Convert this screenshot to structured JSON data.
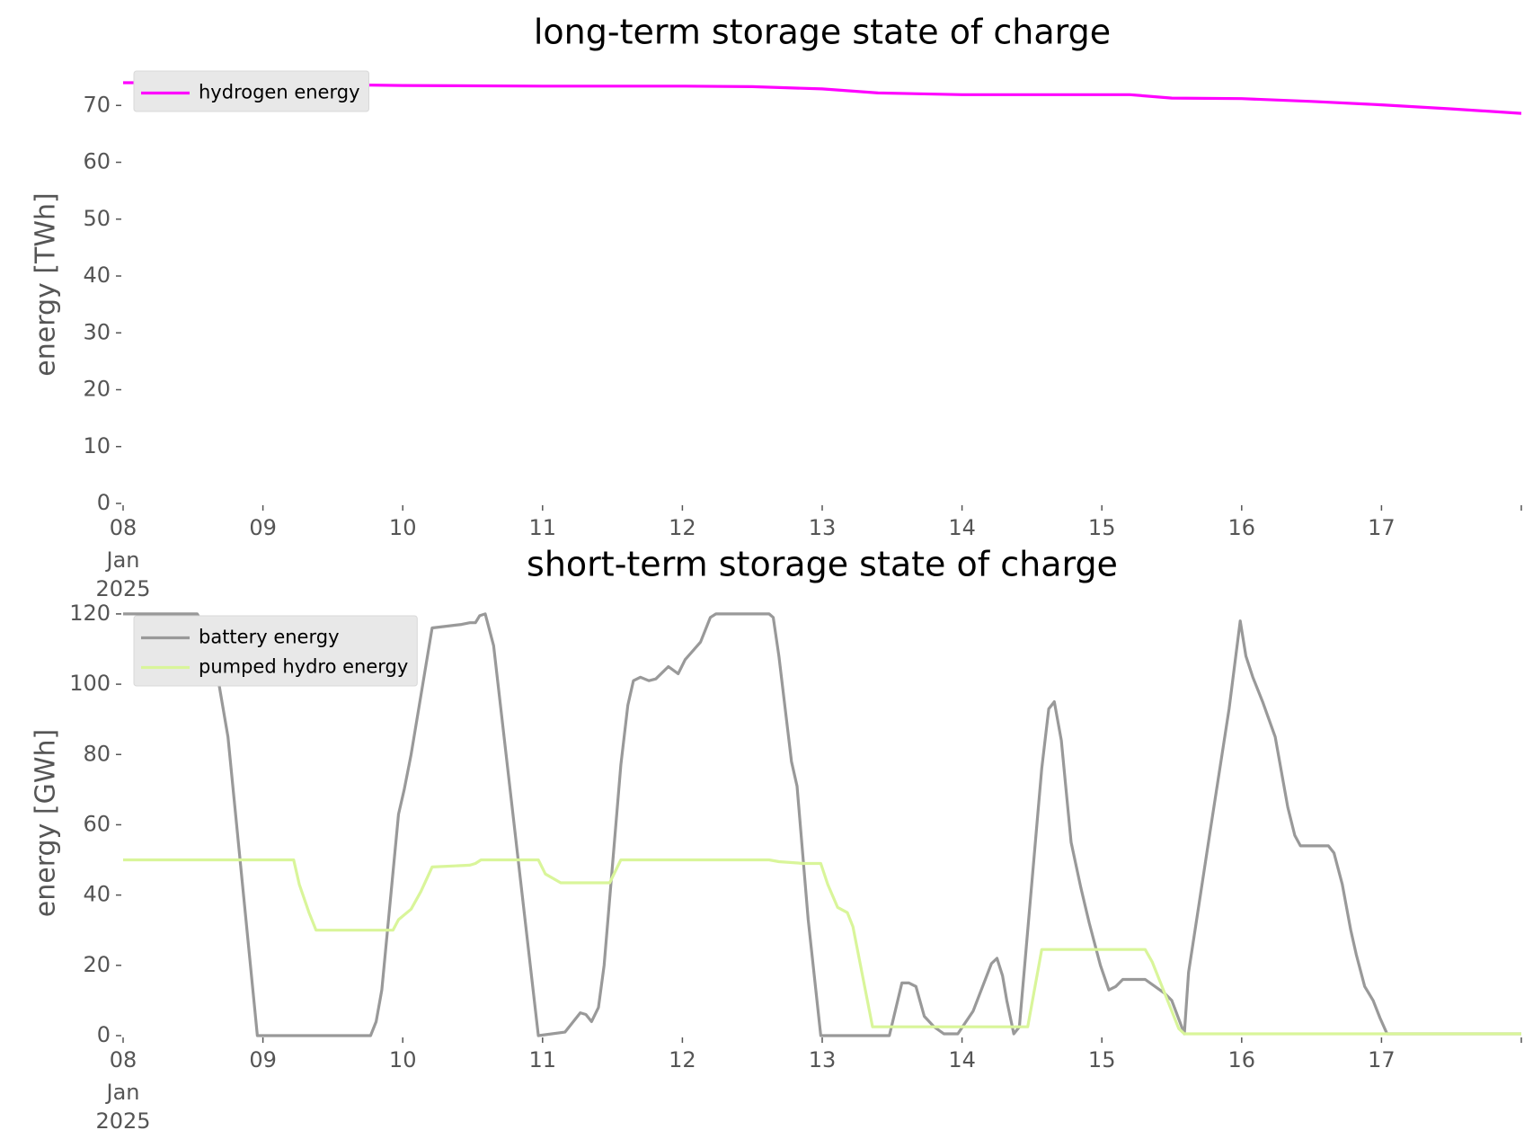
{
  "chart_data": [
    {
      "type": "line",
      "title": "long-term storage state of charge",
      "ylabel": "energy [TWh]",
      "xlim": [
        8,
        18
      ],
      "ylim": [
        0,
        77
      ],
      "xticks": [
        {
          "value": 8,
          "label": "08"
        },
        {
          "value": 9,
          "label": "09"
        },
        10,
        11,
        12,
        13,
        14,
        15,
        16,
        17,
        {
          "value": 18,
          "label": null
        }
      ],
      "x_start_sublabels": [
        "Jan",
        "2025"
      ],
      "yticks": [
        0,
        10,
        20,
        30,
        40,
        50,
        60,
        70
      ],
      "legend": "upper left",
      "grid": false,
      "series": [
        {
          "name": "hydrogen energy",
          "color": "#ff00ff",
          "x": [
            8,
            8.5,
            9,
            10,
            11,
            12,
            12.5,
            13,
            13.4,
            14,
            15.2,
            15.5,
            16,
            16.5,
            17,
            17.5,
            18
          ],
          "values": [
            74,
            74,
            73.8,
            73.5,
            73.4,
            73.4,
            73.3,
            72.9,
            72.2,
            71.9,
            71.9,
            71.3,
            71.2,
            70.7,
            70.1,
            69.4,
            68.6
          ]
        }
      ]
    },
    {
      "type": "line",
      "title": "short-term storage state of charge",
      "ylabel": "energy [GWh]",
      "xlim": [
        8,
        18
      ],
      "ylim": [
        0,
        121
      ],
      "xticks": [
        {
          "value": 8,
          "label": "08"
        },
        {
          "value": 9,
          "label": "09"
        },
        10,
        11,
        12,
        13,
        14,
        15,
        16,
        17,
        {
          "value": 18,
          "label": null
        }
      ],
      "x_start_sublabels": [
        "Jan",
        "2025"
      ],
      "yticks": [
        0,
        20,
        40,
        60,
        80,
        100,
        120
      ],
      "legend": "upper left",
      "grid": false,
      "series": [
        {
          "name": "battery energy",
          "color": "#999999",
          "x": [
            8,
            8.53,
            8.63,
            8.75,
            8.96,
            9.77,
            9.81,
            9.85,
            9.97,
            10.01,
            10.06,
            10.21,
            10.42,
            10.48,
            10.52,
            10.55,
            10.59,
            10.65,
            10.97,
            11.16,
            11.27,
            11.31,
            11.35,
            11.4,
            11.44,
            11.56,
            11.61,
            11.65,
            11.7,
            11.76,
            11.81,
            11.9,
            11.97,
            12.02,
            12.13,
            12.2,
            12.24,
            12.62,
            12.65,
            12.69,
            12.78,
            12.82,
            12.9,
            12.99,
            13.48,
            13.57,
            13.62,
            13.67,
            13.73,
            13.8,
            13.87,
            13.97,
            14.08,
            14.21,
            14.25,
            14.29,
            14.32,
            14.37,
            14.41,
            14.57,
            14.62,
            14.66,
            14.71,
            14.78,
            14.85,
            14.91,
            14.99,
            15.05,
            15.1,
            15.15,
            15.27,
            15.31,
            15.45,
            15.5,
            15.59,
            15.62,
            15.67,
            15.77,
            15.91,
            15.99,
            16.03,
            16.08,
            16.15,
            16.24,
            16.33,
            16.38,
            16.42,
            16.62,
            16.66,
            16.72,
            16.78,
            16.82,
            16.88,
            16.94,
            16.99,
            17.04,
            18
          ],
          "values": [
            120,
            120,
            113,
            85,
            0,
            0,
            4,
            13,
            63,
            70,
            80,
            116,
            117,
            117.5,
            117.5,
            119.5,
            120,
            111,
            0,
            1,
            6.5,
            6,
            4,
            8,
            20,
            77,
            94,
            101,
            102,
            101,
            101.5,
            105,
            103,
            107,
            112,
            119,
            120,
            120,
            119,
            108,
            78,
            71,
            33,
            0,
            0,
            15,
            15,
            14,
            5.5,
            2.5,
            0.5,
            0.5,
            7,
            20.5,
            22,
            17,
            10,
            0.5,
            2.5,
            76,
            93,
            95,
            84,
            55,
            42,
            32,
            20,
            13,
            14,
            16,
            16,
            16,
            12,
            10,
            0.5,
            18,
            31,
            57,
            93,
            118,
            108,
            102,
            95,
            85,
            65,
            57,
            54,
            54,
            52,
            43,
            30,
            23,
            14,
            10,
            5,
            0.5,
            0.5
          ]
        },
        {
          "name": "pumped hydro energy",
          "color": "#d9f59a",
          "x": [
            8,
            9.22,
            9.26,
            9.33,
            9.38,
            9.93,
            9.97,
            10.06,
            10.13,
            10.21,
            10.48,
            10.52,
            10.56,
            10.97,
            11.02,
            11.13,
            11.48,
            11.56,
            12.62,
            12.69,
            12.87,
            12.99,
            13.04,
            13.11,
            13.18,
            13.22,
            13.36,
            14.47,
            14.57,
            15.31,
            15.36,
            15.55,
            15.59,
            18
          ],
          "values": [
            50,
            50,
            43,
            35,
            30,
            30,
            33,
            36,
            41,
            48,
            48.5,
            49,
            50,
            50,
            46,
            43.5,
            43.5,
            50,
            50,
            49.5,
            49,
            49,
            43,
            36.5,
            35,
            31,
            2.5,
            2.5,
            24.5,
            24.5,
            21,
            2,
            0.5,
            0.5
          ]
        }
      ]
    }
  ]
}
